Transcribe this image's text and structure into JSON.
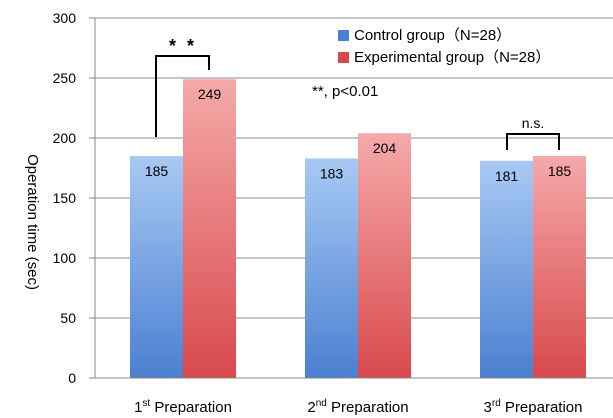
{
  "chart_data": {
    "type": "bar",
    "ylabel": "Operation time (sec)",
    "ylim": [
      0,
      300
    ],
    "yticks": [
      0,
      50,
      100,
      150,
      200,
      250,
      300
    ],
    "categories": [
      {
        "ord": "1",
        "sup": "st",
        "label": "Preparation"
      },
      {
        "ord": "2",
        "sup": "nd",
        "label": "Preparation"
      },
      {
        "ord": "3",
        "sup": "rd",
        "label": "Preparation"
      }
    ],
    "series": [
      {
        "name": "Control group（N=28）",
        "values": [
          185,
          183,
          181
        ],
        "color_top": "#a9c9f3",
        "color_bottom": "#4a80d2"
      },
      {
        "name": "Experimental group（N=28）",
        "values": [
          249,
          204,
          185
        ],
        "color_top": "#f5a9a9",
        "color_bottom": "#d8494c"
      }
    ],
    "data_labels": [
      "185",
      "183",
      "181",
      "249",
      "204",
      "185"
    ],
    "legend_position": "top-right",
    "annotations": {
      "sig_1": "* *",
      "sig_3": "n.s.",
      "note": "**, p<0.01"
    }
  }
}
